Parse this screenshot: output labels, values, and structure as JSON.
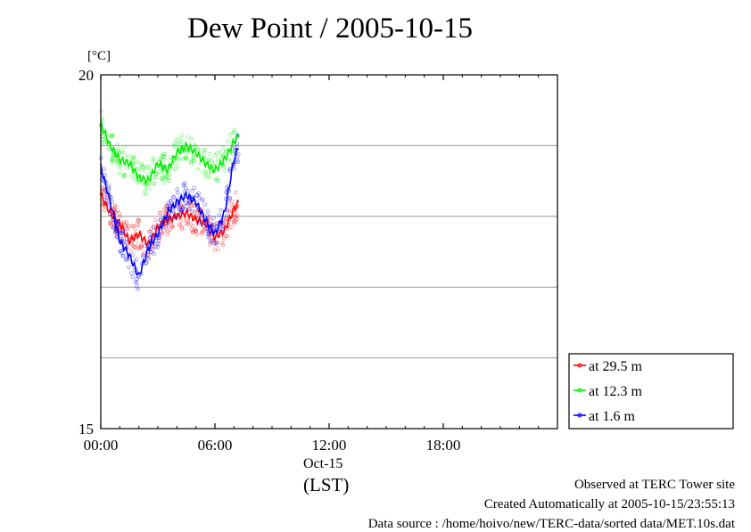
{
  "title": "Dew Point / 2005-10-15",
  "unit_label": "[°C]",
  "date_label": "Oct-15",
  "timezone_label": "(LST)",
  "footer": {
    "site": "Observed at TERC Tower site",
    "created": "Created Automatically at 2005-10-15/23:55:13",
    "source": "Data source : /home/hoivo/new/TERC-data/sorted  data/MET.10s.dat"
  },
  "chart_data": {
    "type": "line",
    "title": "Dew Point / 2005-10-15",
    "ylabel": "[°C]",
    "xlabel": "(LST)",
    "xlim": [
      0,
      24
    ],
    "ylim": [
      15,
      20
    ],
    "x_ticks": [
      {
        "value": 0,
        "label": "00:00"
      },
      {
        "value": 6,
        "label": "06:00"
      },
      {
        "value": 12,
        "label": "12:00"
      },
      {
        "value": 18,
        "label": "18:00"
      }
    ],
    "y_ticks": [
      {
        "value": 15,
        "label": "15"
      },
      {
        "value": 20,
        "label": "20"
      }
    ],
    "grid_y": [
      16,
      17,
      18,
      19
    ],
    "legend_position": "bottom-right, outside plot",
    "x": [
      0,
      0.5,
      1,
      1.5,
      2,
      2.5,
      3,
      3.5,
      4,
      4.5,
      5,
      5.5,
      6,
      6.5,
      7,
      7.25
    ],
    "series": [
      {
        "name": "at 29.5 m",
        "color": "#ff0000",
        "values": [
          18.3,
          18.05,
          17.9,
          17.65,
          17.75,
          17.6,
          17.85,
          17.95,
          18.0,
          18.05,
          17.95,
          17.9,
          17.7,
          17.8,
          18.1,
          18.2
        ]
      },
      {
        "name": "at 12.3 m",
        "color": "#00ee00",
        "values": [
          19.3,
          19.0,
          18.8,
          18.75,
          18.55,
          18.5,
          18.75,
          18.65,
          18.9,
          19.0,
          18.9,
          18.75,
          18.65,
          18.8,
          19.05,
          19.15
        ]
      },
      {
        "name": "at 1.6 m",
        "color": "#0000ff",
        "values": [
          18.7,
          18.2,
          17.65,
          17.45,
          17.15,
          17.55,
          17.75,
          18.05,
          18.2,
          18.3,
          18.2,
          17.95,
          17.75,
          18.05,
          18.8,
          19.0
        ]
      }
    ]
  }
}
